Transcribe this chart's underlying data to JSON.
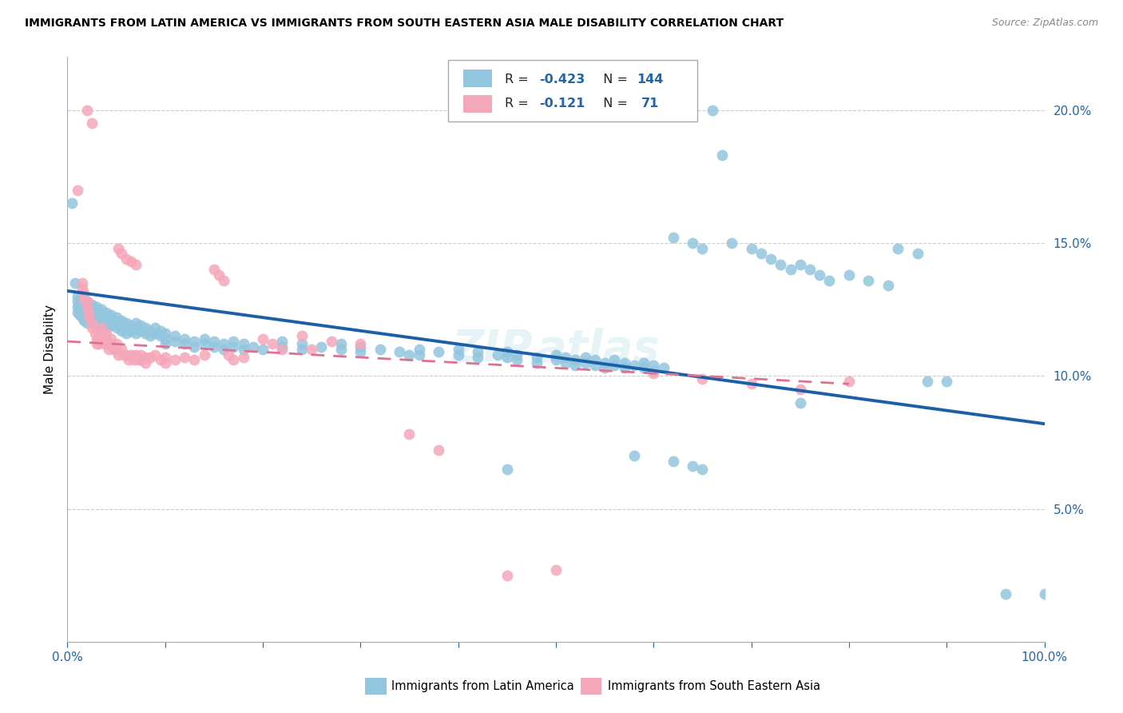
{
  "title": "IMMIGRANTS FROM LATIN AMERICA VS IMMIGRANTS FROM SOUTH EASTERN ASIA MALE DISABILITY CORRELATION CHART",
  "source": "Source: ZipAtlas.com",
  "ylabel": "Male Disability",
  "xlim": [
    0,
    1.0
  ],
  "ylim": [
    0,
    0.22
  ],
  "yticks": [
    0.05,
    0.1,
    0.15,
    0.2
  ],
  "ytick_labels": [
    "5.0%",
    "10.0%",
    "15.0%",
    "20.0%"
  ],
  "xtick_labels": [
    "0.0%",
    "",
    "",
    "",
    "",
    "",
    "",
    "",
    "",
    "",
    "100.0%"
  ],
  "blue_color": "#92c5de",
  "pink_color": "#f4a7b9",
  "blue_line_color": "#1a5fa8",
  "pink_line_color": "#e07090",
  "legend_R_blue": "-0.423",
  "legend_N_blue": "144",
  "legend_R_pink": "-0.121",
  "legend_N_pink": "71",
  "watermark": "ZIPAtlas",
  "blue_line": [
    0.0,
    0.132,
    1.0,
    0.082
  ],
  "pink_line": [
    0.0,
    0.113,
    0.8,
    0.097
  ],
  "blue_scatter": [
    [
      0.005,
      0.165
    ],
    [
      0.008,
      0.135
    ],
    [
      0.01,
      0.13
    ],
    [
      0.01,
      0.128
    ],
    [
      0.01,
      0.126
    ],
    [
      0.01,
      0.124
    ],
    [
      0.012,
      0.127
    ],
    [
      0.013,
      0.125
    ],
    [
      0.013,
      0.123
    ],
    [
      0.015,
      0.13
    ],
    [
      0.015,
      0.128
    ],
    [
      0.015,
      0.126
    ],
    [
      0.015,
      0.124
    ],
    [
      0.015,
      0.122
    ],
    [
      0.017,
      0.127
    ],
    [
      0.017,
      0.125
    ],
    [
      0.017,
      0.123
    ],
    [
      0.017,
      0.121
    ],
    [
      0.02,
      0.128
    ],
    [
      0.02,
      0.126
    ],
    [
      0.02,
      0.124
    ],
    [
      0.02,
      0.122
    ],
    [
      0.02,
      0.12
    ],
    [
      0.022,
      0.126
    ],
    [
      0.022,
      0.124
    ],
    [
      0.022,
      0.122
    ],
    [
      0.025,
      0.127
    ],
    [
      0.025,
      0.125
    ],
    [
      0.025,
      0.123
    ],
    [
      0.025,
      0.121
    ],
    [
      0.027,
      0.125
    ],
    [
      0.027,
      0.123
    ],
    [
      0.027,
      0.121
    ],
    [
      0.03,
      0.126
    ],
    [
      0.03,
      0.124
    ],
    [
      0.03,
      0.122
    ],
    [
      0.03,
      0.12
    ],
    [
      0.032,
      0.124
    ],
    [
      0.032,
      0.122
    ],
    [
      0.032,
      0.12
    ],
    [
      0.035,
      0.125
    ],
    [
      0.035,
      0.123
    ],
    [
      0.035,
      0.121
    ],
    [
      0.035,
      0.119
    ],
    [
      0.038,
      0.123
    ],
    [
      0.038,
      0.121
    ],
    [
      0.04,
      0.124
    ],
    [
      0.04,
      0.122
    ],
    [
      0.04,
      0.12
    ],
    [
      0.04,
      0.118
    ],
    [
      0.043,
      0.122
    ],
    [
      0.043,
      0.12
    ],
    [
      0.045,
      0.123
    ],
    [
      0.045,
      0.121
    ],
    [
      0.045,
      0.119
    ],
    [
      0.05,
      0.122
    ],
    [
      0.05,
      0.12
    ],
    [
      0.05,
      0.118
    ],
    [
      0.055,
      0.121
    ],
    [
      0.055,
      0.119
    ],
    [
      0.055,
      0.117
    ],
    [
      0.06,
      0.12
    ],
    [
      0.06,
      0.118
    ],
    [
      0.06,
      0.116
    ],
    [
      0.065,
      0.119
    ],
    [
      0.065,
      0.117
    ],
    [
      0.07,
      0.12
    ],
    [
      0.07,
      0.118
    ],
    [
      0.07,
      0.116
    ],
    [
      0.075,
      0.119
    ],
    [
      0.075,
      0.117
    ],
    [
      0.08,
      0.118
    ],
    [
      0.08,
      0.116
    ],
    [
      0.085,
      0.117
    ],
    [
      0.085,
      0.115
    ],
    [
      0.09,
      0.118
    ],
    [
      0.09,
      0.116
    ],
    [
      0.095,
      0.117
    ],
    [
      0.095,
      0.115
    ],
    [
      0.1,
      0.116
    ],
    [
      0.1,
      0.114
    ],
    [
      0.1,
      0.112
    ],
    [
      0.11,
      0.115
    ],
    [
      0.11,
      0.113
    ],
    [
      0.12,
      0.114
    ],
    [
      0.12,
      0.112
    ],
    [
      0.13,
      0.113
    ],
    [
      0.13,
      0.111
    ],
    [
      0.14,
      0.114
    ],
    [
      0.14,
      0.112
    ],
    [
      0.15,
      0.113
    ],
    [
      0.15,
      0.111
    ],
    [
      0.16,
      0.112
    ],
    [
      0.16,
      0.11
    ],
    [
      0.17,
      0.113
    ],
    [
      0.17,
      0.111
    ],
    [
      0.18,
      0.112
    ],
    [
      0.18,
      0.11
    ],
    [
      0.19,
      0.111
    ],
    [
      0.2,
      0.11
    ],
    [
      0.22,
      0.113
    ],
    [
      0.22,
      0.111
    ],
    [
      0.24,
      0.112
    ],
    [
      0.24,
      0.11
    ],
    [
      0.26,
      0.111
    ],
    [
      0.28,
      0.112
    ],
    [
      0.28,
      0.11
    ],
    [
      0.3,
      0.111
    ],
    [
      0.3,
      0.109
    ],
    [
      0.32,
      0.11
    ],
    [
      0.34,
      0.109
    ],
    [
      0.35,
      0.108
    ],
    [
      0.36,
      0.11
    ],
    [
      0.36,
      0.108
    ],
    [
      0.38,
      0.109
    ],
    [
      0.4,
      0.11
    ],
    [
      0.4,
      0.108
    ],
    [
      0.42,
      0.109
    ],
    [
      0.42,
      0.107
    ],
    [
      0.44,
      0.108
    ],
    [
      0.45,
      0.109
    ],
    [
      0.45,
      0.107
    ],
    [
      0.46,
      0.108
    ],
    [
      0.46,
      0.106
    ],
    [
      0.48,
      0.107
    ],
    [
      0.48,
      0.105
    ],
    [
      0.5,
      0.108
    ],
    [
      0.5,
      0.106
    ],
    [
      0.51,
      0.107
    ],
    [
      0.51,
      0.105
    ],
    [
      0.52,
      0.106
    ],
    [
      0.52,
      0.104
    ],
    [
      0.53,
      0.107
    ],
    [
      0.53,
      0.105
    ],
    [
      0.54,
      0.106
    ],
    [
      0.54,
      0.104
    ],
    [
      0.55,
      0.105
    ],
    [
      0.55,
      0.103
    ],
    [
      0.56,
      0.106
    ],
    [
      0.56,
      0.104
    ],
    [
      0.57,
      0.105
    ],
    [
      0.57,
      0.103
    ],
    [
      0.58,
      0.104
    ],
    [
      0.59,
      0.105
    ],
    [
      0.59,
      0.103
    ],
    [
      0.6,
      0.104
    ],
    [
      0.6,
      0.102
    ],
    [
      0.61,
      0.103
    ],
    [
      0.62,
      0.152
    ],
    [
      0.64,
      0.15
    ],
    [
      0.65,
      0.148
    ],
    [
      0.66,
      0.2
    ],
    [
      0.67,
      0.183
    ],
    [
      0.68,
      0.15
    ],
    [
      0.7,
      0.148
    ],
    [
      0.71,
      0.146
    ],
    [
      0.72,
      0.144
    ],
    [
      0.73,
      0.142
    ],
    [
      0.74,
      0.14
    ],
    [
      0.75,
      0.142
    ],
    [
      0.75,
      0.09
    ],
    [
      0.76,
      0.14
    ],
    [
      0.77,
      0.138
    ],
    [
      0.78,
      0.136
    ],
    [
      0.8,
      0.138
    ],
    [
      0.82,
      0.136
    ],
    [
      0.84,
      0.134
    ],
    [
      0.85,
      0.148
    ],
    [
      0.87,
      0.146
    ],
    [
      0.88,
      0.098
    ],
    [
      0.45,
      0.065
    ],
    [
      0.58,
      0.07
    ],
    [
      0.62,
      0.068
    ],
    [
      0.64,
      0.066
    ],
    [
      0.65,
      0.065
    ],
    [
      0.9,
      0.098
    ],
    [
      0.96,
      0.018
    ],
    [
      1.0,
      0.018
    ]
  ],
  "pink_scatter": [
    [
      0.01,
      0.17
    ],
    [
      0.015,
      0.135
    ],
    [
      0.015,
      0.133
    ],
    [
      0.017,
      0.131
    ],
    [
      0.017,
      0.129
    ],
    [
      0.02,
      0.128
    ],
    [
      0.02,
      0.126
    ],
    [
      0.022,
      0.124
    ],
    [
      0.022,
      0.122
    ],
    [
      0.025,
      0.12
    ],
    [
      0.025,
      0.118
    ],
    [
      0.028,
      0.116
    ],
    [
      0.03,
      0.114
    ],
    [
      0.03,
      0.112
    ],
    [
      0.032,
      0.114
    ],
    [
      0.032,
      0.112
    ],
    [
      0.035,
      0.118
    ],
    [
      0.035,
      0.116
    ],
    [
      0.038,
      0.114
    ],
    [
      0.038,
      0.112
    ],
    [
      0.04,
      0.116
    ],
    [
      0.04,
      0.114
    ],
    [
      0.042,
      0.112
    ],
    [
      0.042,
      0.11
    ],
    [
      0.045,
      0.114
    ],
    [
      0.045,
      0.112
    ],
    [
      0.048,
      0.11
    ],
    [
      0.05,
      0.112
    ],
    [
      0.05,
      0.11
    ],
    [
      0.052,
      0.148
    ],
    [
      0.052,
      0.108
    ],
    [
      0.055,
      0.146
    ],
    [
      0.055,
      0.11
    ],
    [
      0.058,
      0.108
    ],
    [
      0.06,
      0.144
    ],
    [
      0.06,
      0.108
    ],
    [
      0.063,
      0.106
    ],
    [
      0.065,
      0.143
    ],
    [
      0.065,
      0.108
    ],
    [
      0.068,
      0.106
    ],
    [
      0.07,
      0.142
    ],
    [
      0.07,
      0.108
    ],
    [
      0.073,
      0.106
    ],
    [
      0.075,
      0.108
    ],
    [
      0.075,
      0.106
    ],
    [
      0.08,
      0.107
    ],
    [
      0.08,
      0.105
    ],
    [
      0.085,
      0.107
    ],
    [
      0.09,
      0.108
    ],
    [
      0.095,
      0.106
    ],
    [
      0.1,
      0.107
    ],
    [
      0.1,
      0.105
    ],
    [
      0.11,
      0.106
    ],
    [
      0.12,
      0.107
    ],
    [
      0.13,
      0.106
    ],
    [
      0.14,
      0.108
    ],
    [
      0.15,
      0.14
    ],
    [
      0.155,
      0.138
    ],
    [
      0.16,
      0.136
    ],
    [
      0.165,
      0.108
    ],
    [
      0.02,
      0.2
    ],
    [
      0.025,
      0.195
    ],
    [
      0.17,
      0.106
    ],
    [
      0.18,
      0.107
    ],
    [
      0.2,
      0.114
    ],
    [
      0.21,
      0.112
    ],
    [
      0.22,
      0.11
    ],
    [
      0.24,
      0.115
    ],
    [
      0.25,
      0.11
    ],
    [
      0.27,
      0.113
    ],
    [
      0.3,
      0.112
    ],
    [
      0.35,
      0.078
    ],
    [
      0.38,
      0.072
    ],
    [
      0.45,
      0.025
    ],
    [
      0.5,
      0.027
    ],
    [
      0.6,
      0.101
    ],
    [
      0.65,
      0.099
    ],
    [
      0.7,
      0.097
    ],
    [
      0.75,
      0.095
    ],
    [
      0.8,
      0.098
    ]
  ]
}
